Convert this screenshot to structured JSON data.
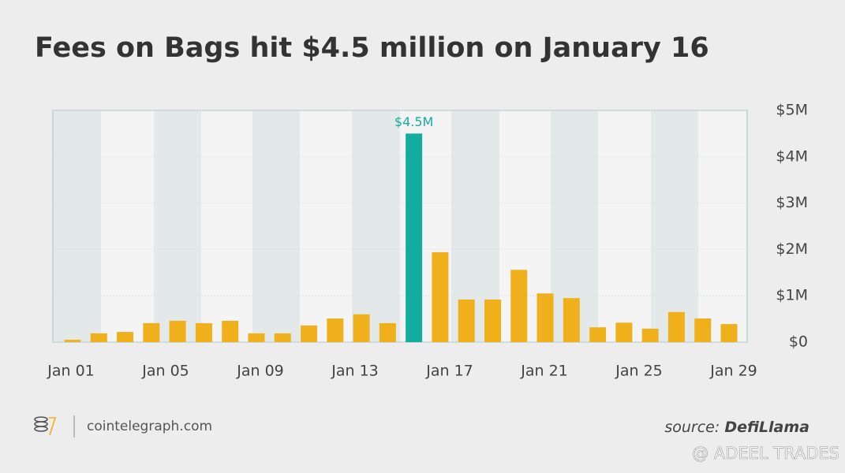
{
  "chart_data": {
    "type": "bar",
    "title": "Fees on Bags hit $4.5 million on January 16",
    "x_labels": [
      "Jan 01",
      "Jan 05",
      "Jan 09",
      "Jan 13",
      "Jan 17",
      "Jan 21",
      "Jan 25",
      "Jan 29"
    ],
    "values": [
      0.05,
      0.19,
      0.22,
      0.41,
      0.46,
      0.41,
      0.46,
      0.19,
      0.19,
      0.36,
      0.51,
      0.6,
      0.41,
      4.5,
      1.94,
      0.92,
      0.92,
      1.56,
      1.05,
      0.95,
      0.32,
      0.42,
      0.29,
      0.65,
      0.51,
      0.39
    ],
    "value_labels": [
      null,
      null,
      null,
      null,
      null,
      null,
      null,
      null,
      null,
      null,
      null,
      null,
      null,
      "$4.5M",
      null,
      null,
      null,
      null,
      null,
      null,
      null,
      null,
      null,
      null,
      null,
      null
    ],
    "color": "#f0b01b",
    "highlight_color": "#13ada0",
    "highlight_index": 13,
    "ylim": [
      0,
      5
    ],
    "yticks": [
      {
        "value": 0,
        "label": "$0"
      },
      {
        "value": 1,
        "label": "$1M"
      },
      {
        "value": 2,
        "label": "$2M"
      },
      {
        "value": 3,
        "label": "$3M"
      },
      {
        "value": 4,
        "label": "$4M"
      },
      {
        "value": 5,
        "label": "$5M"
      }
    ],
    "grid": true,
    "y_axis_side": "right",
    "brand": "cointelegraph.com",
    "source_prefix": "source:",
    "source": "DefiLlama",
    "watermark": "@ ADEEL TRADES"
  }
}
